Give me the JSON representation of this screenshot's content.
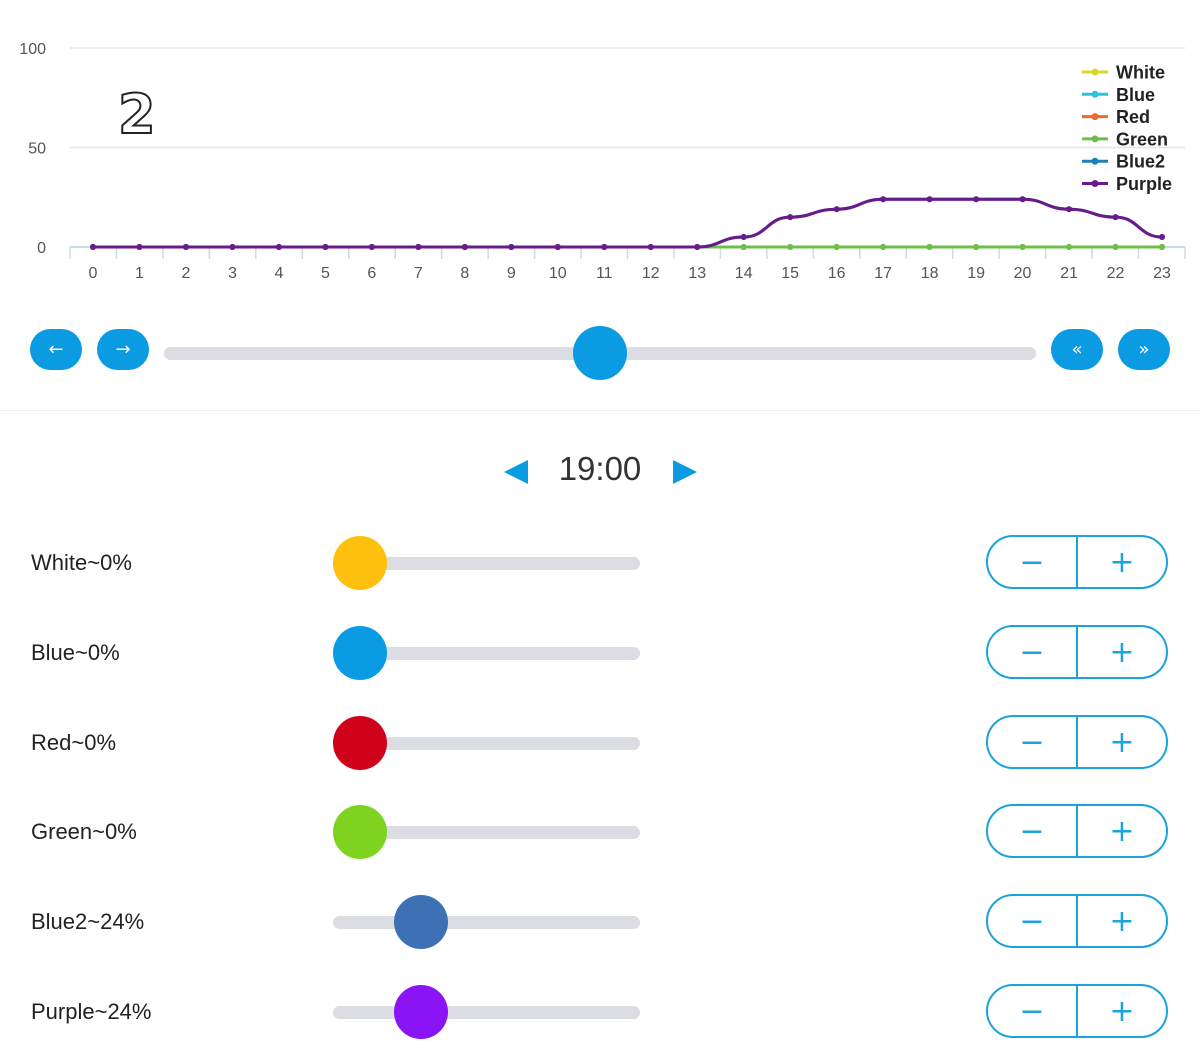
{
  "schedule_number": "2",
  "chart_data": {
    "type": "line",
    "x": [
      0,
      1,
      2,
      3,
      4,
      5,
      6,
      7,
      8,
      9,
      10,
      11,
      12,
      13,
      14,
      15,
      16,
      17,
      18,
      19,
      20,
      21,
      22,
      23
    ],
    "x_tick_labels": [
      "0",
      "1",
      "2",
      "3",
      "4",
      "5",
      "6",
      "7",
      "8",
      "9",
      "10",
      "11",
      "12",
      "13",
      "14",
      "15",
      "16",
      "17",
      "18",
      "19",
      "20",
      "21",
      "22",
      "23"
    ],
    "y_tick_labels": [
      "100",
      "50",
      "0"
    ],
    "ylim": [
      0,
      100
    ],
    "grid": true,
    "legend_position": "top-right",
    "series": [
      {
        "name": "White",
        "color": "#d8d82a",
        "values": [
          0,
          0,
          0,
          0,
          0,
          0,
          0,
          0,
          0,
          0,
          0,
          0,
          0,
          0,
          0,
          0,
          0,
          0,
          0,
          0,
          0,
          0,
          0,
          0
        ]
      },
      {
        "name": "Blue",
        "color": "#2cc3d8",
        "values": [
          0,
          0,
          0,
          0,
          0,
          0,
          0,
          0,
          0,
          0,
          0,
          0,
          0,
          0,
          0,
          0,
          0,
          0,
          0,
          0,
          0,
          0,
          0,
          0
        ]
      },
      {
        "name": "Red",
        "color": "#ee6a2c",
        "values": [
          0,
          0,
          0,
          0,
          0,
          0,
          0,
          0,
          0,
          0,
          0,
          0,
          0,
          0,
          0,
          0,
          0,
          0,
          0,
          0,
          0,
          0,
          0,
          0
        ]
      },
      {
        "name": "Green",
        "color": "#6cc04a",
        "values": [
          0,
          0,
          0,
          0,
          0,
          0,
          0,
          0,
          0,
          0,
          0,
          0,
          0,
          0,
          0,
          0,
          0,
          0,
          0,
          0,
          0,
          0,
          0,
          0
        ]
      },
      {
        "name": "Blue2",
        "color": "#1f7fb8",
        "values": [
          0,
          0,
          0,
          0,
          0,
          0,
          0,
          0,
          0,
          0,
          0,
          0,
          0,
          0,
          5,
          15,
          19,
          24,
          24,
          24,
          24,
          19,
          15,
          5
        ]
      },
      {
        "name": "Purple",
        "color": "#6a1a8a",
        "values": [
          0,
          0,
          0,
          0,
          0,
          0,
          0,
          0,
          0,
          0,
          0,
          0,
          0,
          0,
          5,
          15,
          19,
          24,
          24,
          24,
          24,
          19,
          15,
          5
        ]
      }
    ]
  },
  "timeline": {
    "prev_icon": "arrow-left-icon",
    "next_icon": "arrow-right-icon",
    "rewind_icon": "double-chevron-left-icon",
    "forward_icon": "double-chevron-right-icon",
    "hour_position": 0.5,
    "accent_color": "#0b9be3"
  },
  "time": {
    "value": "19:00",
    "prev_icon": "triangle-left-icon",
    "next_icon": "triangle-right-icon"
  },
  "channels": [
    {
      "label": "White~0%",
      "level": 0,
      "color": "#fdc00f"
    },
    {
      "label": "Blue~0%",
      "level": 0,
      "color": "#0b9be3"
    },
    {
      "label": "Red~0%",
      "level": 0,
      "color": "#d0021b"
    },
    {
      "label": "Green~0%",
      "level": 0,
      "color": "#7ed321"
    },
    {
      "label": "Blue2~24%",
      "level": 24,
      "color": "#3d71b5"
    },
    {
      "label": "Purple~24%",
      "level": 24,
      "color": "#8a14f5"
    }
  ],
  "stepper": {
    "minus": "−",
    "plus": "+"
  }
}
